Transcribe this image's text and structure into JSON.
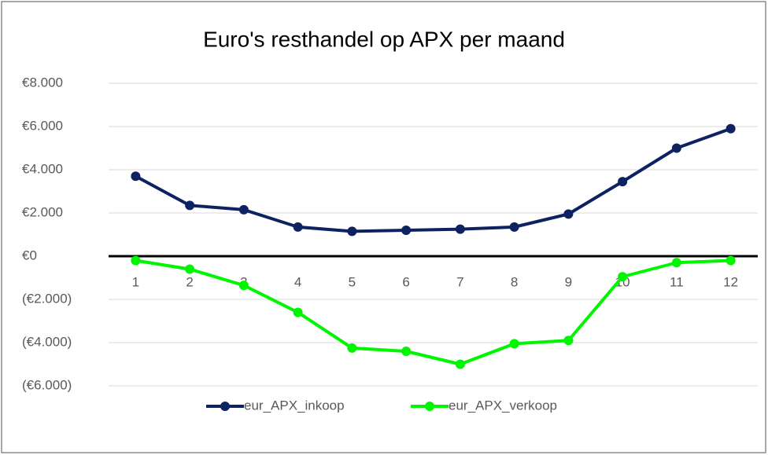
{
  "chart_data": {
    "type": "line",
    "title": "Euro's resthandel op APX per maand",
    "categories": [
      "1",
      "2",
      "3",
      "4",
      "5",
      "6",
      "7",
      "8",
      "9",
      "10",
      "11",
      "12"
    ],
    "series": [
      {
        "name": "eur_APX_inkoop",
        "color": "#0d2260",
        "values": [
          3700,
          2350,
          2150,
          1350,
          1150,
          1200,
          1250,
          1350,
          1950,
          3450,
          5000,
          5900
        ]
      },
      {
        "name": "eur_APX_verkoop",
        "color": "#00f500",
        "values": [
          -200,
          -600,
          -1350,
          -2600,
          -4250,
          -4400,
          -5000,
          -4050,
          -3900,
          -950,
          -300,
          -200
        ]
      }
    ],
    "ylim": [
      -6000,
      8000
    ],
    "yticks": [
      {
        "value": -6000,
        "label": "(€6.000)"
      },
      {
        "value": -4000,
        "label": "(€4.000)"
      },
      {
        "value": -2000,
        "label": "(€2.000)"
      },
      {
        "value": 0,
        "label": "€0"
      },
      {
        "value": 2000,
        "label": "€2.000"
      },
      {
        "value": 4000,
        "label": "€4.000"
      },
      {
        "value": 6000,
        "label": "€6.000"
      },
      {
        "value": 8000,
        "label": "€8.000"
      }
    ],
    "grid": true,
    "legend": "bottom"
  }
}
